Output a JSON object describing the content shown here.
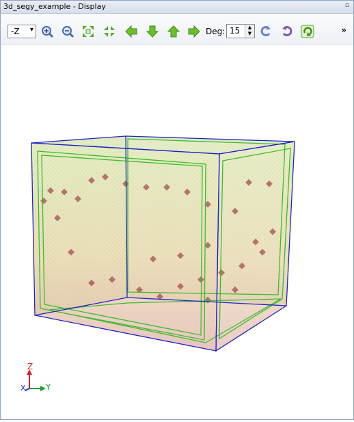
{
  "window": {
    "title": "3d_segy_example - Display",
    "pin_glyph": "▫"
  },
  "toolbar": {
    "view_select": {
      "value": "-Z",
      "arrow": "▾"
    },
    "buttons": [
      {
        "name": "zoom-in-icon"
      },
      {
        "name": "zoom-out-icon"
      },
      {
        "name": "fit-expand-icon"
      },
      {
        "name": "fit-contract-icon"
      },
      {
        "name": "arrow-left-icon"
      },
      {
        "name": "arrow-down-icon"
      },
      {
        "name": "arrow-up-icon"
      },
      {
        "name": "arrow-right-icon"
      }
    ],
    "deg_label": "Deg:",
    "deg_value": "15",
    "overflow": "»",
    "colors": {
      "green": "#5aa82a",
      "blue": "#6a7fd0",
      "purple": "#7a5ab8"
    }
  },
  "viewport": {
    "axis_labels": {
      "z": "Z",
      "x": "X",
      "y": "Y"
    },
    "colors": {
      "box_blue": "#1f24c8",
      "slice_green": "#3dbb2e",
      "volume": "#c8d89a",
      "horizon": "#a0444a"
    }
  }
}
